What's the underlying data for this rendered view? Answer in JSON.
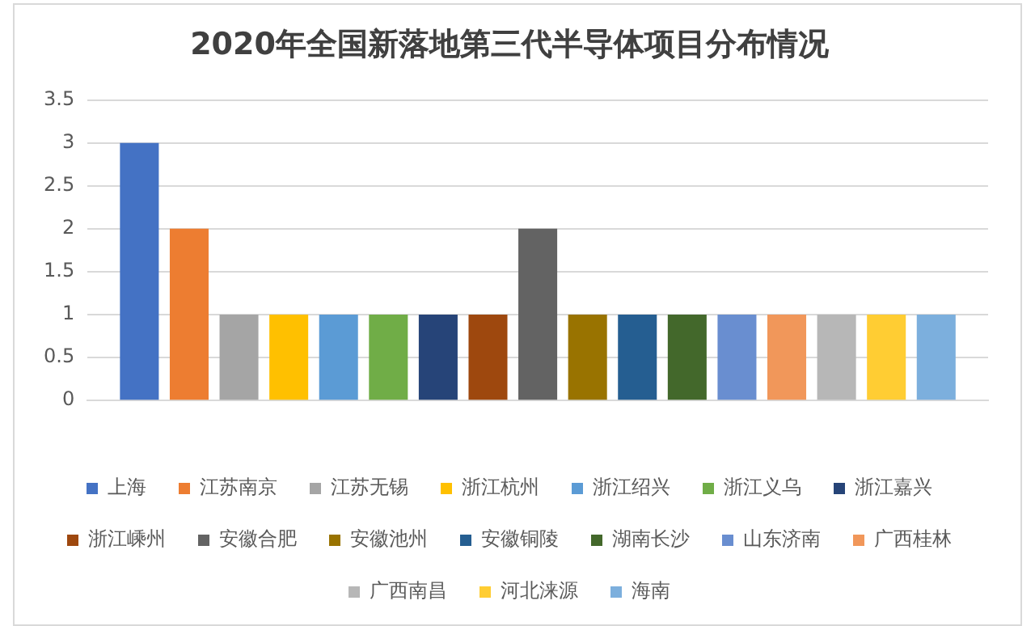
{
  "chart_data": {
    "type": "bar",
    "title": "2020年全国新落地第三代半导体项目分布情况",
    "categories": [
      null
    ],
    "series": [
      {
        "name": "上海",
        "color": "#4472c4",
        "values": [
          3
        ]
      },
      {
        "name": "江苏南京",
        "color": "#ed7d31",
        "values": [
          2
        ]
      },
      {
        "name": "江苏无锡",
        "color": "#a5a5a5",
        "values": [
          1
        ]
      },
      {
        "name": "浙江杭州",
        "color": "#ffc000",
        "values": [
          1
        ]
      },
      {
        "name": "浙江绍兴",
        "color": "#5b9bd5",
        "values": [
          1
        ]
      },
      {
        "name": "浙江义乌",
        "color": "#70ad47",
        "values": [
          1
        ]
      },
      {
        "name": "浙江嘉兴",
        "color": "#264478",
        "values": [
          1
        ]
      },
      {
        "name": "浙江嵊州",
        "color": "#9e480e",
        "values": [
          1
        ]
      },
      {
        "name": "安徽合肥",
        "color": "#636363",
        "values": [
          2
        ]
      },
      {
        "name": "安徽池州",
        "color": "#997300",
        "values": [
          1
        ]
      },
      {
        "name": "安徽铜陵",
        "color": "#255e91",
        "values": [
          1
        ]
      },
      {
        "name": "湖南长沙",
        "color": "#43682b",
        "values": [
          1
        ]
      },
      {
        "name": "山东济南",
        "color": "#698ed0",
        "values": [
          1
        ]
      },
      {
        "name": "广西桂林",
        "color": "#f1975a",
        "values": [
          1
        ]
      },
      {
        "name": "广西南昌",
        "color": "#b7b7b7",
        "values": [
          1
        ]
      },
      {
        "name": "河北涞源",
        "color": "#ffcd33",
        "values": [
          1
        ]
      },
      {
        "name": "海南",
        "color": "#7cafdd",
        "values": [
          1
        ]
      }
    ],
    "ylim": [
      0,
      3.5
    ],
    "yticks": [
      0,
      0.5,
      1,
      1.5,
      2,
      2.5,
      3,
      3.5
    ],
    "grid": "y",
    "legend": "bottom"
  }
}
